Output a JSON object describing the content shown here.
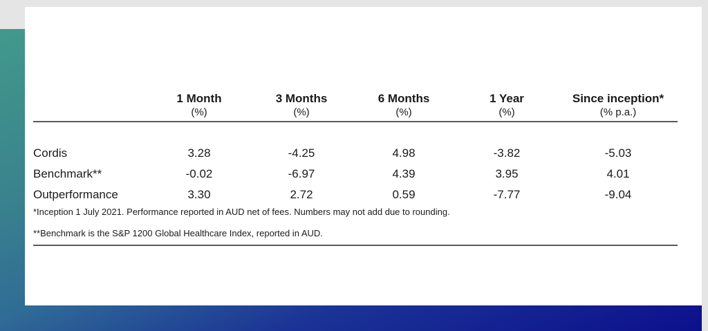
{
  "slide": {
    "frame_colors": {
      "margin_gray": "#e5e5e5",
      "gradient_teal_start": "#42998c",
      "gradient_navy_end": "#0c108c",
      "panel_white": "#ffffff",
      "rule_gray": "#595959"
    }
  },
  "chart_data": {
    "type": "table",
    "title": "",
    "columns": [
      {
        "label": "1 Month",
        "sub": "(%)"
      },
      {
        "label": "3 Months",
        "sub": "(%)"
      },
      {
        "label": "6 Months",
        "sub": "(%)"
      },
      {
        "label": "1 Year",
        "sub": "(%)"
      },
      {
        "label": "Since inception*",
        "sub": "(% p.a.)"
      }
    ],
    "rows": [
      {
        "label": "Cordis",
        "values": [
          "3.28",
          "-4.25",
          "4.98",
          "-3.82",
          "-5.03"
        ]
      },
      {
        "label": "Benchmark**",
        "values": [
          "-0.02",
          "-6.97",
          "4.39",
          "3.95",
          "4.01"
        ]
      },
      {
        "label": "Outperformance",
        "values": [
          "3.30",
          "2.72",
          "0.59",
          "-7.77",
          "-9.04"
        ]
      }
    ],
    "footnotes": [
      "*Inception 1 July 2021. Performance reported in AUD net of fees. Numbers may not add due to rounding.",
      "**Benchmark is the S&P 1200 Global Healthcare Index, reported in AUD."
    ]
  }
}
